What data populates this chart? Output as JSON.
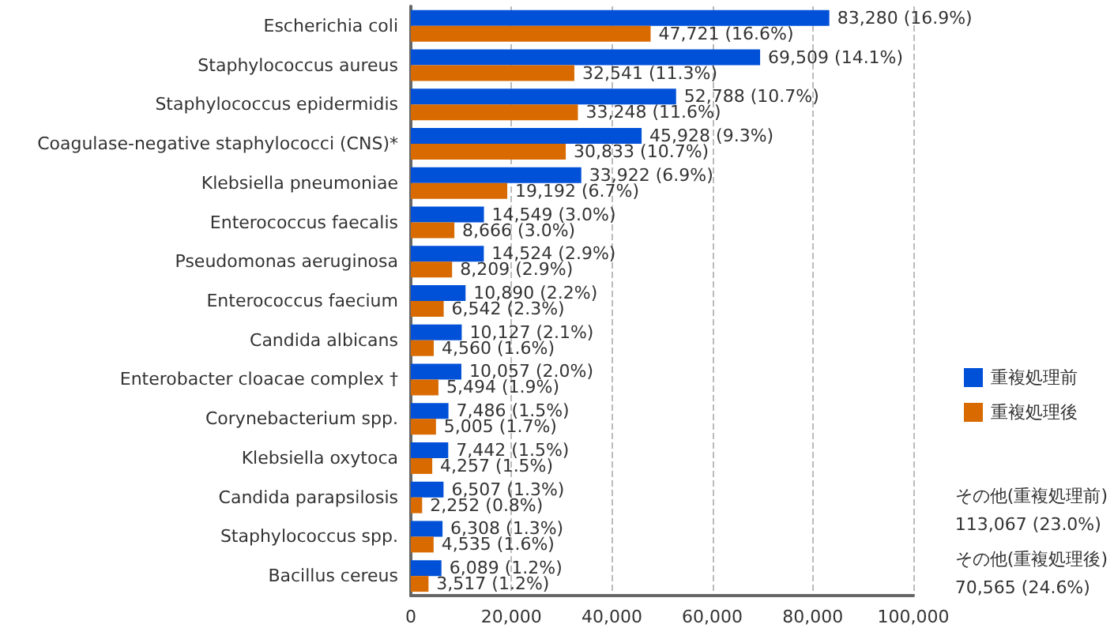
{
  "chart_data": {
    "type": "bar",
    "orientation": "horizontal",
    "categories": [
      "Escherichia coli",
      "Staphylococcus aureus",
      "Staphylococcus epidermidis",
      "Coagulase-negative staphylococci (CNS)*",
      "Klebsiella pneumoniae",
      "Enterococcus faecalis",
      "Pseudomonas aeruginosa",
      "Enterococcus faecium",
      "Candida albicans",
      "Enterobacter cloacae complex †",
      "Corynebacterium spp.",
      "Klebsiella oxytoca",
      "Candida parapsilosis",
      "Staphylococcus spp.",
      "Bacillus cereus"
    ],
    "series": [
      {
        "name": "重複処理前",
        "color": "#0050d8",
        "values": [
          83280,
          69509,
          52788,
          45928,
          33922,
          14549,
          14524,
          10890,
          10127,
          10057,
          7486,
          7442,
          6507,
          6308,
          6089
        ],
        "value_labels": [
          "83,280 (16.9%)",
          "69,509 (14.1%)",
          "52,788 (10.7%)",
          "45,928 (9.3%)",
          "33,922 (6.9%)",
          "14,549 (3.0%)",
          "14,524 (2.9%)",
          "10,890 (2.2%)",
          "10,127 (2.1%)",
          "10,057 (2.0%)",
          "7,486 (1.5%)",
          "7,442 (1.5%)",
          "6,507 (1.3%)",
          "6,308 (1.3%)",
          "6,089 (1.2%)"
        ]
      },
      {
        "name": "重複処理後",
        "color": "#d86a00",
        "values": [
          47721,
          32541,
          33248,
          30833,
          19192,
          8666,
          8209,
          6542,
          4560,
          5494,
          5005,
          4257,
          2252,
          4535,
          3517
        ],
        "value_labels": [
          "47,721 (16.6%)",
          "32,541 (11.3%)",
          "33,248 (11.6%)",
          "30,833 (10.7%)",
          "19,192 (6.7%)",
          "8,666 (3.0%)",
          "8,209 (2.9%)",
          "6,542 (2.3%)",
          "4,560 (1.6%)",
          "5,494 (1.9%)",
          "5,005 (1.7%)",
          "4,257 (1.5%)",
          "2,252 (0.8%)",
          "4,535 (1.6%)",
          "3,517 (1.2%)"
        ]
      }
    ],
    "xlim": [
      0,
      100000
    ],
    "xticks": [
      0,
      {
        "value": 20000,
        "label": "20,000"
      },
      {
        "value": 40000,
        "label": "40,000"
      },
      {
        "value": 60000,
        "label": "60,000"
      },
      {
        "value": 80000,
        "label": "80,000"
      },
      {
        "value": 100000,
        "label": "100,000"
      }
    ],
    "grid": "x",
    "legend": "right",
    "annotations": [
      "その他(重複処理前)\n113,067 (23.0%)",
      "その他(重複処理後)\n70,565 (24.6%)"
    ]
  }
}
